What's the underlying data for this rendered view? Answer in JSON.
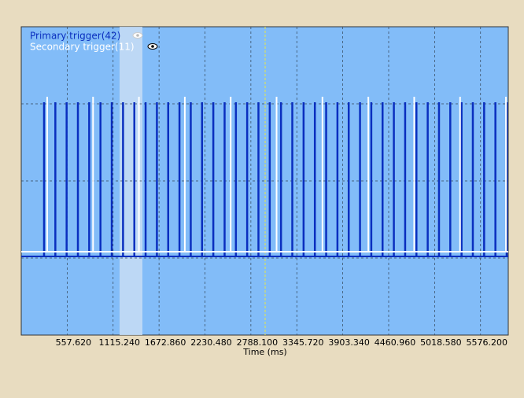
{
  "chart_data": {
    "type": "trigger",
    "x_label": "Time (ms)",
    "xlim": [
      0,
      5913
    ],
    "xticks": [
      {
        "value": 557.62,
        "label": "557.620"
      },
      {
        "value": 1115.24,
        "label": "1115.240"
      },
      {
        "value": 1672.86,
        "label": "1672.860"
      },
      {
        "value": 2230.48,
        "label": "2230.480"
      },
      {
        "value": 2788.1,
        "label": "2788.100"
      },
      {
        "value": 3345.72,
        "label": "3345.720"
      },
      {
        "value": 3903.34,
        "label": "3903.340"
      },
      {
        "value": 4460.96,
        "label": "4460.960"
      },
      {
        "value": 5018.58,
        "label": "5018.580"
      },
      {
        "value": 5576.2,
        "label": "5576.200"
      }
    ],
    "series": [
      {
        "name": "Primary trigger(42)",
        "color": "#0a2fbf",
        "values": [
          277,
          414,
          551,
          688,
          825,
          962,
          1099,
          1236,
          1373,
          1510,
          1647,
          1784,
          1921,
          2058,
          2195,
          2332,
          2469,
          2606,
          2743,
          2880,
          3017,
          3154,
          3291,
          3428,
          3565,
          3702,
          3839,
          3976,
          4113,
          4250,
          4387,
          4524,
          4661,
          4798,
          4935,
          5072,
          5209,
          5346,
          5483,
          5620,
          5757,
          5894
        ]
      },
      {
        "name": "Secondary trigger(11)",
        "color": "#ffffff",
        "values": [
          315,
          872,
          1429,
          1986,
          2543,
          3100,
          3657,
          4214,
          4771,
          5328,
          5885
        ]
      }
    ]
  }
}
